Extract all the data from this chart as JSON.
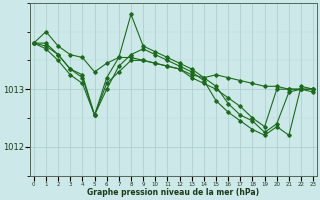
{
  "bg_color": "#cce8e8",
  "plot_bg_color": "#cce8e8",
  "line_color": "#1a6b1a",
  "grid_color_major": "#aacccc",
  "grid_color_minor": "#bbdddd",
  "xlabel": "Graphe pression niveau de la mer (hPa)",
  "yticks": [
    1012,
    1013
  ],
  "ylim": [
    1011.5,
    1014.5
  ],
  "xlim": [
    -0.3,
    23.3
  ],
  "xticks": [
    0,
    1,
    2,
    3,
    4,
    5,
    6,
    7,
    8,
    9,
    10,
    11,
    12,
    13,
    14,
    15,
    16,
    17,
    18,
    19,
    20,
    21,
    22,
    23
  ],
  "series": [
    [
      1013.8,
      1014.0,
      1013.75,
      1013.6,
      1013.55,
      1013.3,
      1013.45,
      1013.55,
      1013.55,
      1013.5,
      1013.45,
      1013.4,
      1013.35,
      1013.25,
      1013.2,
      1013.25,
      1013.2,
      1013.15,
      1013.1,
      1013.05,
      1013.05,
      1013.0,
      1013.0,
      1013.0
    ],
    [
      1013.8,
      1013.8,
      1013.6,
      1013.35,
      1013.25,
      1012.55,
      1013.1,
      1013.3,
      1013.5,
      1013.5,
      1013.45,
      1013.4,
      1013.35,
      1013.2,
      1013.1,
      1013.0,
      1012.85,
      1012.7,
      1012.5,
      1012.35,
      1013.0,
      1013.0,
      1013.0,
      1013.0
    ],
    [
      1013.8,
      1013.75,
      1013.6,
      1013.35,
      1013.2,
      1012.55,
      1013.2,
      1013.55,
      1014.3,
      1013.75,
      1013.65,
      1013.55,
      1013.45,
      1013.35,
      1013.2,
      1013.05,
      1012.75,
      1012.55,
      1012.45,
      1012.25,
      1012.4,
      1012.95,
      1013.0,
      1012.95
    ],
    [
      1013.8,
      1013.7,
      1013.5,
      1013.25,
      1013.1,
      1012.55,
      1013.0,
      1013.4,
      1013.6,
      1013.7,
      1013.6,
      1013.5,
      1013.4,
      1013.3,
      1013.15,
      1012.8,
      1012.6,
      1012.45,
      1012.3,
      1012.2,
      1012.35,
      1012.2,
      1013.05,
      1013.0
    ]
  ]
}
